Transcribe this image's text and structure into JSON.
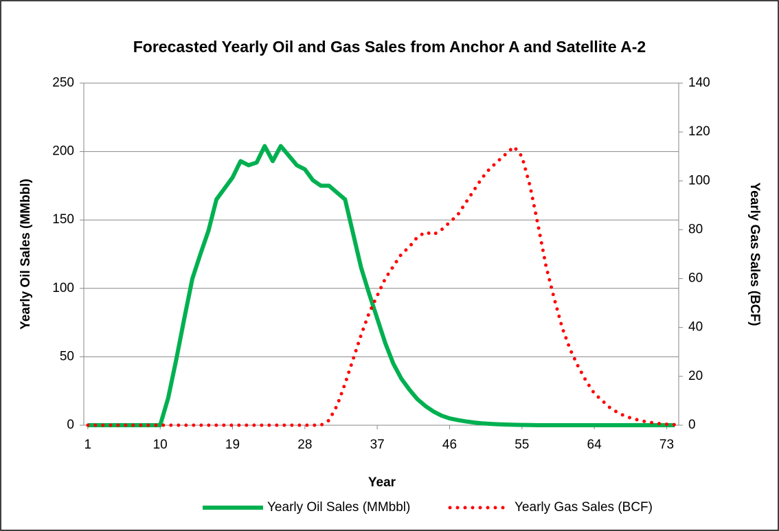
{
  "chart_data": {
    "type": "line",
    "title": "Forecasted Yearly Oil and Gas Sales from Anchor A and Satellite A-2",
    "x_label": "Year",
    "y_label": "Yearly Oil Sales (MMbbl)",
    "y2_label": "Yearly Gas Sales (BCF)",
    "x": [
      1,
      2,
      3,
      4,
      5,
      6,
      7,
      8,
      9,
      10,
      11,
      12,
      13,
      14,
      15,
      16,
      17,
      18,
      19,
      20,
      21,
      22,
      23,
      24,
      25,
      26,
      27,
      28,
      29,
      30,
      31,
      32,
      33,
      34,
      35,
      36,
      37,
      38,
      39,
      40,
      41,
      42,
      43,
      44,
      45,
      46,
      47,
      48,
      49,
      50,
      51,
      52,
      53,
      54,
      55,
      56,
      57,
      58,
      59,
      60,
      61,
      62,
      63,
      64,
      65,
      66,
      67,
      68,
      69,
      70,
      71,
      72,
      73,
      74
    ],
    "xlim": [
      0.5,
      74.5
    ],
    "xticks": [
      1,
      10,
      19,
      28,
      37,
      46,
      55,
      64,
      73
    ],
    "ylim": [
      0,
      250
    ],
    "yticks": [
      0,
      50,
      100,
      150,
      200,
      250
    ],
    "y2lim": [
      0,
      140
    ],
    "y2ticks": [
      0,
      20,
      40,
      60,
      80,
      100,
      120,
      140
    ],
    "grid": true,
    "legend": "bottom",
    "series": [
      {
        "name": "Yearly Oil Sales (MMbbl)",
        "color": "#00b050",
        "style": "solid",
        "axis": "y",
        "values": [
          0,
          0,
          0,
          0,
          0,
          0,
          0,
          0,
          0,
          0,
          20,
          48,
          78,
          107,
          125,
          142,
          165,
          173,
          181,
          193,
          190,
          192,
          204,
          193,
          204,
          197,
          190,
          187,
          179,
          175,
          175,
          170,
          165,
          140,
          115,
          96,
          78,
          60,
          45,
          34,
          26,
          19,
          14,
          10,
          7,
          5,
          3.8,
          2.8,
          2,
          1.4,
          1,
          0.7,
          0.5,
          0.3,
          0.2,
          0.1,
          0,
          0,
          0,
          0,
          0,
          0,
          0,
          0,
          0,
          0,
          0,
          0,
          0,
          0,
          0,
          0,
          0,
          0
        ]
      },
      {
        "name": "Yearly Gas Sales (BCF)",
        "color": "#ff0000",
        "style": "dotted",
        "axis": "y2",
        "values": [
          0,
          0,
          0,
          0,
          0,
          0,
          0,
          0,
          0,
          0,
          0,
          0,
          0,
          0,
          0,
          0,
          0,
          0,
          0,
          0,
          0,
          0,
          0,
          0,
          0,
          0,
          0,
          0,
          0,
          0,
          2,
          8,
          17,
          27,
          37,
          46,
          53,
          60,
          65,
          70,
          73,
          77,
          79,
          78,
          80,
          83,
          86,
          91,
          96,
          101,
          105,
          108,
          111,
          114,
          110,
          98,
          82,
          65,
          52,
          40,
          31,
          24,
          18,
          13,
          10,
          7,
          5,
          3.5,
          2.5,
          1.7,
          1.1,
          0.7,
          0.4,
          0.2
        ]
      }
    ]
  }
}
